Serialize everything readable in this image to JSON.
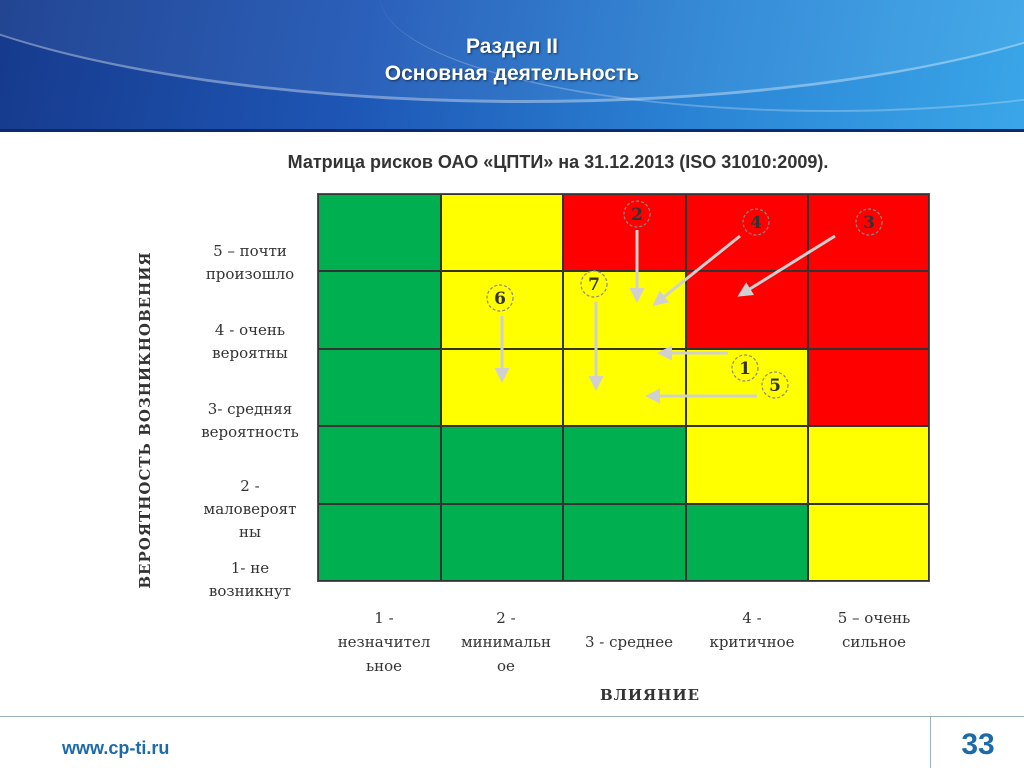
{
  "header": {
    "title_line1": "Раздел II",
    "title_line2": "Основная деятельность"
  },
  "subtitle": "Матрица рисков ОАО «ЦПТИ» на 31.12.2013 (ISO 31010:2009).",
  "matrix": {
    "rows_top_to_bottom": [
      [
        "green",
        "yellow",
        "red",
        "red",
        "red"
      ],
      [
        "green",
        "yellow",
        "yellow",
        "red",
        "red"
      ],
      [
        "green",
        "yellow",
        "yellow",
        "yellow",
        "red"
      ],
      [
        "green",
        "green",
        "green",
        "yellow",
        "yellow"
      ],
      [
        "green",
        "green",
        "green",
        "green",
        "yellow"
      ]
    ],
    "colors": {
      "green": "#00b050",
      "yellow": "#ffff00",
      "red": "#ff0000"
    }
  },
  "axis": {
    "y_title": "ВЕРОЯТНОСТЬ ВОЗНИКНОВЕНИЯ",
    "x_title": "ВЛИЯНИЕ",
    "y_labels": [
      [
        "5 – почти",
        "произошло"
      ],
      [
        "4 - очень",
        "вероятны"
      ],
      [
        "3- средняя",
        "вероятность"
      ],
      [
        "2 -",
        "маловероят",
        "ны"
      ],
      [
        "1- не",
        "возникнут"
      ]
    ],
    "x_labels": [
      [
        "1 -",
        "незначител",
        "ьное"
      ],
      [
        "2 -",
        "минимальн",
        "ое"
      ],
      [
        "3 - среднее"
      ],
      [
        "4 -",
        "критичное"
      ],
      [
        "5 – очень",
        "сильное"
      ]
    ]
  },
  "markers": [
    {
      "label": "2"
    },
    {
      "label": "4"
    },
    {
      "label": "3"
    },
    {
      "label": "7"
    },
    {
      "label": "6"
    },
    {
      "label": "1"
    },
    {
      "label": "5"
    }
  ],
  "footer": {
    "url": "www.cp-ti.ru",
    "page": "33"
  }
}
